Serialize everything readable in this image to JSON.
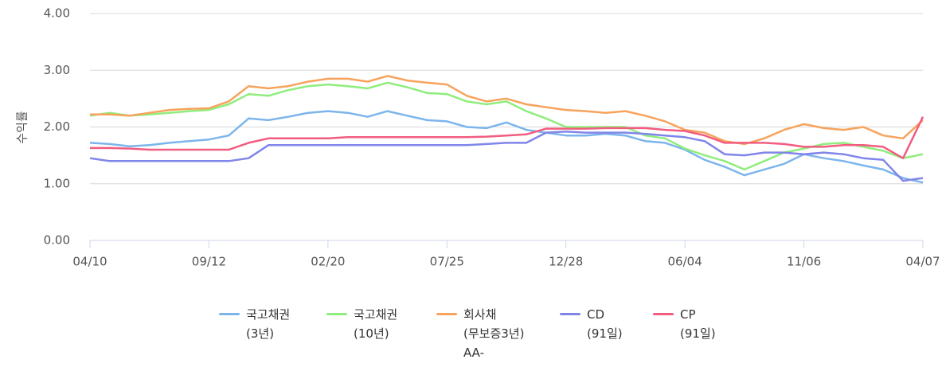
{
  "chart_data": {
    "type": "line",
    "y_label": "수익률",
    "categories": [
      "04/10",
      null,
      null,
      null,
      null,
      null,
      "09/12",
      null,
      null,
      null,
      null,
      null,
      "02/20",
      null,
      null,
      null,
      null,
      null,
      "07/25",
      null,
      null,
      null,
      null,
      null,
      "12/28",
      null,
      null,
      null,
      null,
      null,
      "06/04",
      null,
      null,
      null,
      null,
      null,
      "11/06",
      null,
      null,
      null,
      null,
      null,
      "04/07"
    ],
    "ylim": [
      0,
      4
    ],
    "yticks": [
      {
        "value": 0,
        "label": "0.00"
      },
      {
        "value": 1,
        "label": "1.00"
      },
      {
        "value": 2,
        "label": "2.00"
      },
      {
        "value": 3,
        "label": "3.00"
      },
      {
        "value": 4,
        "label": "4.00"
      }
    ],
    "grid": true,
    "series": [
      {
        "name": "국고채권\n(3년)",
        "color": "#7cb5ec",
        "values": [
          1.72,
          1.7,
          1.66,
          1.68,
          1.72,
          1.75,
          1.78,
          1.85,
          2.15,
          2.12,
          2.18,
          2.25,
          2.28,
          2.25,
          2.18,
          2.28,
          2.2,
          2.12,
          2.1,
          2.0,
          1.98,
          2.08,
          1.95,
          1.9,
          1.85,
          1.85,
          1.88,
          1.85,
          1.75,
          1.72,
          1.6,
          1.42,
          1.3,
          1.15,
          1.25,
          1.35,
          1.52,
          1.45,
          1.4,
          1.32,
          1.25,
          1.1,
          1.02
        ]
      },
      {
        "name": "국고채권\n(10년)",
        "color": "#90ed7d",
        "values": [
          2.2,
          2.25,
          2.2,
          2.22,
          2.25,
          2.28,
          2.3,
          2.4,
          2.58,
          2.55,
          2.65,
          2.72,
          2.75,
          2.72,
          2.68,
          2.78,
          2.7,
          2.6,
          2.58,
          2.45,
          2.4,
          2.45,
          2.28,
          2.15,
          2.0,
          2.0,
          2.0,
          2.0,
          1.85,
          1.8,
          1.62,
          1.5,
          1.4,
          1.25,
          1.4,
          1.55,
          1.62,
          1.7,
          1.72,
          1.65,
          1.58,
          1.45,
          1.52
        ]
      },
      {
        "name": "회사채\n(무보증3년)\nAA-",
        "color": "#f7a35c",
        "values": [
          2.22,
          2.22,
          2.2,
          2.25,
          2.3,
          2.32,
          2.33,
          2.45,
          2.72,
          2.68,
          2.72,
          2.8,
          2.85,
          2.85,
          2.8,
          2.9,
          2.82,
          2.78,
          2.75,
          2.55,
          2.45,
          2.5,
          2.4,
          2.35,
          2.3,
          2.28,
          2.25,
          2.28,
          2.2,
          2.1,
          1.95,
          1.9,
          1.75,
          1.7,
          1.8,
          1.95,
          2.05,
          1.98,
          1.95,
          2.0,
          1.85,
          1.8,
          2.12
        ]
      },
      {
        "name": "CD\n(91일)",
        "color": "#8085e9",
        "values": [
          1.45,
          1.4,
          1.4,
          1.4,
          1.4,
          1.4,
          1.4,
          1.4,
          1.45,
          1.68,
          1.68,
          1.68,
          1.68,
          1.68,
          1.68,
          1.68,
          1.68,
          1.68,
          1.68,
          1.68,
          1.7,
          1.72,
          1.72,
          1.9,
          1.92,
          1.9,
          1.9,
          1.9,
          1.88,
          1.85,
          1.82,
          1.75,
          1.52,
          1.5,
          1.55,
          1.55,
          1.52,
          1.55,
          1.52,
          1.45,
          1.42,
          1.05,
          1.1
        ]
      },
      {
        "name": "CP\n(91일)",
        "color": "#f15c80",
        "values": [
          1.63,
          1.63,
          1.62,
          1.6,
          1.6,
          1.6,
          1.6,
          1.6,
          1.72,
          1.8,
          1.8,
          1.8,
          1.8,
          1.82,
          1.82,
          1.82,
          1.82,
          1.82,
          1.82,
          1.82,
          1.83,
          1.85,
          1.87,
          1.97,
          1.97,
          1.97,
          1.98,
          1.98,
          1.98,
          1.95,
          1.93,
          1.85,
          1.72,
          1.72,
          1.72,
          1.7,
          1.65,
          1.65,
          1.68,
          1.68,
          1.65,
          1.45,
          2.18
        ]
      }
    ]
  }
}
